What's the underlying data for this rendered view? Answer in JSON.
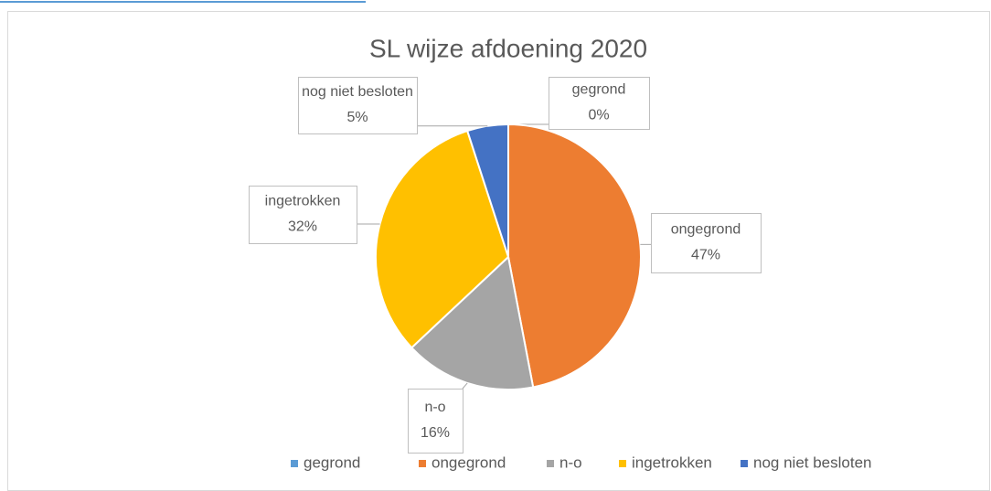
{
  "chart_data": {
    "type": "pie",
    "title": "SL wijze afdoening 2020",
    "categories": [
      "gegrond",
      "ongegrond",
      "n-o",
      "ingetrokken",
      "nog niet besloten"
    ],
    "values": [
      0,
      47,
      16,
      32,
      5
    ],
    "value_labels": [
      "0%",
      "47%",
      "16%",
      "32%",
      "5%"
    ],
    "colors": [
      "#5b9bd5",
      "#ed7d31",
      "#a5a5a5",
      "#ffc000",
      "#4472c4"
    ],
    "legend": "bottom"
  }
}
